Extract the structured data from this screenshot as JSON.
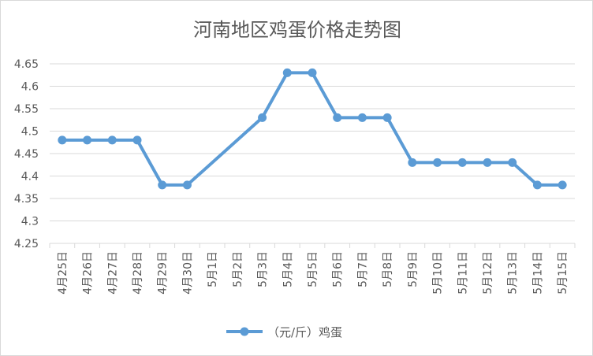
{
  "chart_data": {
    "type": "line",
    "title": "河南地区鸡蛋价格走势图",
    "categories": [
      "4月25日",
      "4月26日",
      "4月27日",
      "4月28日",
      "4月29日",
      "4月30日",
      "5月1日",
      "5月2日",
      "5月3日",
      "5月4日",
      "5月5日",
      "5月6日",
      "5月7日",
      "5月8日",
      "5月9日",
      "5月10日",
      "5月11日",
      "5月12日",
      "5月13日",
      "5月14日",
      "5月15日"
    ],
    "series": [
      {
        "name": "（元/斤）鸡蛋",
        "color": "#5b9bd5",
        "values": [
          4.48,
          4.48,
          4.48,
          4.48,
          4.38,
          4.38,
          null,
          null,
          4.53,
          4.63,
          4.63,
          4.53,
          4.53,
          4.53,
          4.43,
          4.43,
          4.43,
          4.43,
          4.43,
          4.38,
          4.38
        ]
      }
    ],
    "ylim": [
      4.25,
      4.65
    ],
    "yticks": [
      "4.25",
      "4.3",
      "4.35",
      "4.4",
      "4.45",
      "4.5",
      "4.55",
      "4.6",
      "4.65"
    ],
    "grid": true,
    "legend": "bottom"
  }
}
